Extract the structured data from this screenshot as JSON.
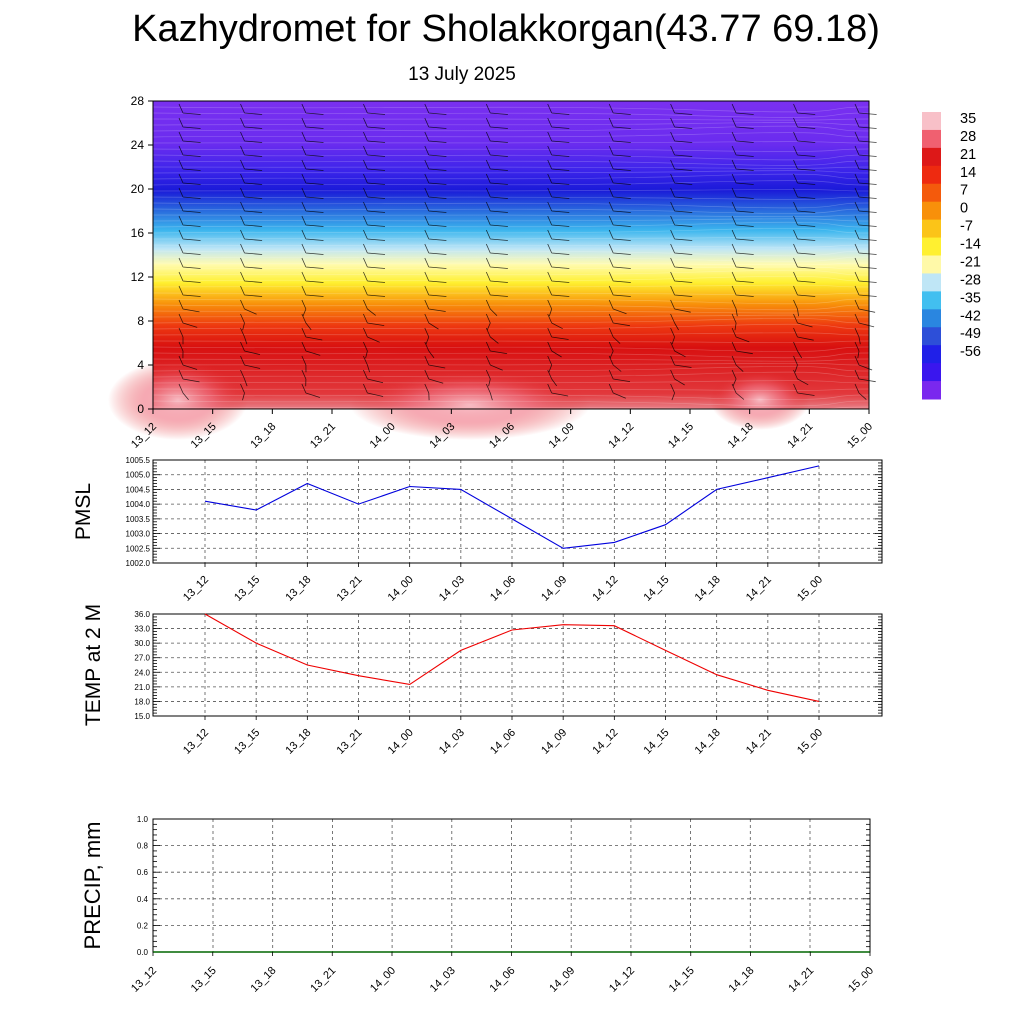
{
  "header": {
    "title": "Kazhydromet for Sholakkorgan(43.77 69.18)",
    "subtitle": "13 July 2025"
  },
  "colors": {
    "pmsl_line": "#0000dd",
    "temp_line": "#ee0000",
    "precip_line": "#006600",
    "grid": "#555555"
  },
  "chart_data": [
    {
      "type": "heatmap",
      "name": "temperature-cross-section",
      "x_ticks": [
        "13_12",
        "13_15",
        "13_18",
        "13_21",
        "14_00",
        "14_03",
        "14_06",
        "14_09",
        "14_12",
        "14_15",
        "14_18",
        "14_21",
        "15_00"
      ],
      "y_ticks": [
        "0",
        "4",
        "8",
        "12",
        "16",
        "20",
        "24",
        "28"
      ],
      "ylim": [
        0,
        28
      ],
      "colorbar_labels": [
        "35",
        "28",
        "21",
        "14",
        "7",
        "0",
        "-7",
        "-14",
        "-21",
        "-28",
        "-35",
        "-42",
        "-49",
        "-56"
      ],
      "colorbar_colors": [
        "#f8c0c8",
        "#f06070",
        "#dd1818",
        "#ee2a10",
        "#f45a0c",
        "#f8900a",
        "#fbc418",
        "#fff030",
        "#fff9a8",
        "#bfe6f6",
        "#42bff0",
        "#2a86e0",
        "#2d4fd8",
        "#2020e8",
        "#3a16ee",
        "#7a28ee"
      ]
    },
    {
      "type": "line",
      "name": "pmsl",
      "ylabel": "PMSL",
      "x": [
        "13_12",
        "13_15",
        "13_18",
        "13_21",
        "14_00",
        "14_03",
        "14_06",
        "14_09",
        "14_12",
        "14_15",
        "14_18",
        "14_21",
        "15_00"
      ],
      "values": [
        1004.1,
        1003.8,
        1004.7,
        1004.0,
        1004.6,
        1004.5,
        1003.5,
        1002.5,
        1002.7,
        1003.3,
        1004.5,
        1004.9,
        1005.3
      ],
      "ylim": [
        1002.0,
        1005.5
      ],
      "y_ticks": [
        "1002.0",
        "1002.5",
        "1003.0",
        "1003.5",
        "1004.0",
        "1004.5",
        "1005.0",
        "1005.5"
      ],
      "grid": true
    },
    {
      "type": "line",
      "name": "temp-2m",
      "ylabel": "TEMP at 2 M",
      "x": [
        "13_12",
        "13_15",
        "13_18",
        "13_21",
        "14_00",
        "14_03",
        "14_06",
        "14_09",
        "14_12",
        "14_15",
        "14_18",
        "14_21",
        "15_00"
      ],
      "values": [
        36.0,
        30.0,
        25.5,
        23.3,
        21.5,
        28.5,
        32.7,
        33.8,
        33.6,
        28.5,
        23.5,
        20.3,
        18.0
      ],
      "ylim": [
        15.0,
        36.0
      ],
      "y_ticks": [
        "15.0",
        "18.0",
        "21.0",
        "24.0",
        "27.0",
        "30.0",
        "33.0",
        "36.0"
      ],
      "grid": true
    },
    {
      "type": "line",
      "name": "precip",
      "ylabel": "PRECIP, mm",
      "x": [
        "13_12",
        "13_15",
        "13_18",
        "13_21",
        "14_00",
        "14_03",
        "14_06",
        "14_09",
        "14_12",
        "14_15",
        "14_18",
        "14_21",
        "15_00"
      ],
      "values": [
        0,
        0,
        0,
        0,
        0,
        0,
        0,
        0,
        0,
        0,
        0,
        0,
        0
      ],
      "ylim": [
        0.0,
        1.0
      ],
      "y_ticks": [
        "0.0",
        "0.2",
        "0.4",
        "0.6",
        "0.8",
        "1.0"
      ],
      "grid": true
    }
  ]
}
